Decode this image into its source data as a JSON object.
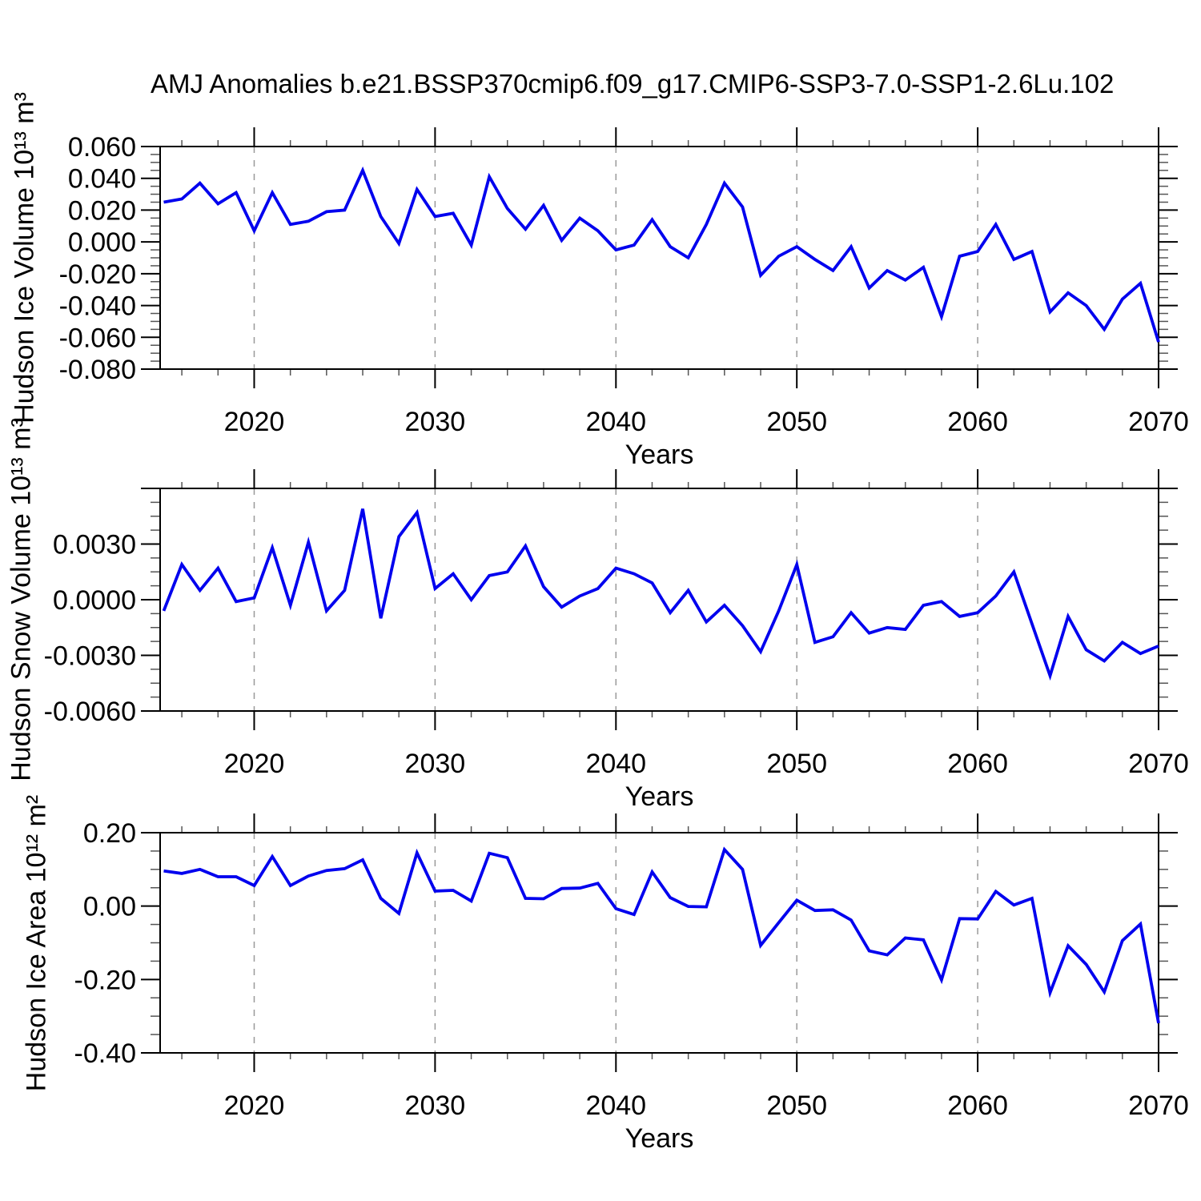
{
  "title": "AMJ Anomalies b.e21.BSSP370cmip6.f09_g17.CMIP6-SSP3-7.0-SSP1-2.6Lu.102",
  "chart_data": {
    "type": "line",
    "line_color": "#0000ee",
    "grid_color": "#9a9a9a",
    "frame_color": "#000000",
    "xlabel": "Years",
    "x_range": [
      2014.8,
      2070
    ],
    "x_major_ticks": [
      2020,
      2030,
      2040,
      2050,
      2060,
      2070
    ],
    "x_minor_start": 2016,
    "x_minor_step": 2,
    "gridlines": [
      2020,
      2030,
      2040,
      2050,
      2060
    ],
    "x": [
      2015,
      2016,
      2017,
      2018,
      2019,
      2020,
      2021,
      2022,
      2023,
      2024,
      2025,
      2026,
      2027,
      2028,
      2029,
      2030,
      2031,
      2032,
      2033,
      2034,
      2035,
      2036,
      2037,
      2038,
      2039,
      2040,
      2041,
      2042,
      2043,
      2044,
      2045,
      2046,
      2047,
      2048,
      2049,
      2050,
      2051,
      2052,
      2053,
      2054,
      2055,
      2056,
      2057,
      2058,
      2059,
      2060,
      2061,
      2062,
      2063,
      2064,
      2065,
      2066,
      2067,
      2068,
      2069,
      2070
    ],
    "panels": [
      {
        "id": "ice-volume",
        "ylabel": "Hudson Ice Volume 10¹³ m³",
        "ylim": [
          -0.08,
          0.06
        ],
        "yticks": [
          0.06,
          0.04,
          0.02,
          0.0,
          -0.02,
          -0.04,
          -0.06,
          -0.08
        ],
        "ytick_labels": [
          "0.060",
          "0.040",
          "0.020",
          "0.000",
          "-0.020",
          "-0.040",
          "-0.060",
          "-0.080"
        ],
        "y_minor_step": 0.005,
        "values": [
          0.025,
          0.027,
          0.037,
          0.024,
          0.031,
          0.007,
          0.031,
          0.011,
          0.013,
          0.019,
          0.02,
          0.045,
          0.016,
          -0.001,
          0.033,
          0.016,
          0.018,
          -0.002,
          0.041,
          0.021,
          0.008,
          0.023,
          0.001,
          0.015,
          0.007,
          -0.005,
          -0.002,
          0.014,
          -0.003,
          -0.01,
          0.011,
          0.037,
          0.022,
          -0.021,
          -0.009,
          -0.003,
          -0.011,
          -0.018,
          -0.003,
          -0.029,
          -0.018,
          -0.024,
          -0.016,
          -0.047,
          -0.009,
          -0.006,
          0.011,
          -0.011,
          -0.006,
          -0.044,
          -0.032,
          -0.04,
          -0.055,
          -0.036,
          -0.026,
          -0.063
        ]
      },
      {
        "id": "snow-volume",
        "ylabel": "Hudson Snow Volume 10¹³ m³",
        "ylim": [
          -0.006,
          0.006
        ],
        "yticks": [
          0.006,
          0.003,
          0.0,
          -0.003,
          -0.006
        ],
        "ytick_labels": [
          "",
          "0.0030",
          "0.0000",
          "-0.0030",
          "-0.0060"
        ],
        "y_minor_step": 0.00075,
        "values": [
          -0.0006,
          0.0019,
          0.0005,
          0.0017,
          -0.0001,
          0.0001,
          0.0028,
          -0.0003,
          0.0031,
          -0.0006,
          0.0005,
          0.0049,
          -0.001,
          0.0034,
          0.0047,
          0.0006,
          0.0014,
          0.0,
          0.0013,
          0.0015,
          0.0029,
          0.0007,
          -0.0004,
          0.0002,
          0.0006,
          0.0017,
          0.0014,
          0.0009,
          -0.0007,
          0.0005,
          -0.0012,
          -0.0003,
          -0.0014,
          -0.0028,
          -0.0006,
          0.0019,
          -0.0023,
          -0.002,
          -0.0007,
          -0.0018,
          -0.0015,
          -0.0016,
          -0.0003,
          -0.0001,
          -0.0009,
          -0.0007,
          0.0002,
          0.0015,
          -0.0013,
          -0.0041,
          -0.0009,
          -0.0027,
          -0.0033,
          -0.0023,
          -0.0029,
          -0.0025
        ]
      },
      {
        "id": "ice-area",
        "ylabel": "Hudson Ice Area 10¹² m²",
        "ylim": [
          -0.4,
          0.2
        ],
        "yticks": [
          0.2,
          0.0,
          -0.2,
          -0.4
        ],
        "ytick_labels": [
          "0.20",
          "0.00",
          "-0.20",
          "-0.40"
        ],
        "y_minor_step": 0.05,
        "values": [
          0.096,
          0.089,
          0.1,
          0.08,
          0.08,
          0.056,
          0.135,
          0.056,
          0.082,
          0.097,
          0.102,
          0.126,
          0.021,
          -0.02,
          0.145,
          0.041,
          0.043,
          0.014,
          0.144,
          0.132,
          0.021,
          0.02,
          0.048,
          0.049,
          0.062,
          -0.007,
          -0.023,
          0.093,
          0.023,
          -0.001,
          -0.002,
          0.154,
          0.1,
          -0.107,
          -0.045,
          0.016,
          -0.012,
          -0.01,
          -0.038,
          -0.122,
          -0.133,
          -0.087,
          -0.092,
          -0.201,
          -0.034,
          -0.035,
          0.04,
          0.003,
          0.021,
          -0.236,
          -0.108,
          -0.159,
          -0.234,
          -0.094,
          -0.049,
          -0.319
        ]
      }
    ]
  }
}
